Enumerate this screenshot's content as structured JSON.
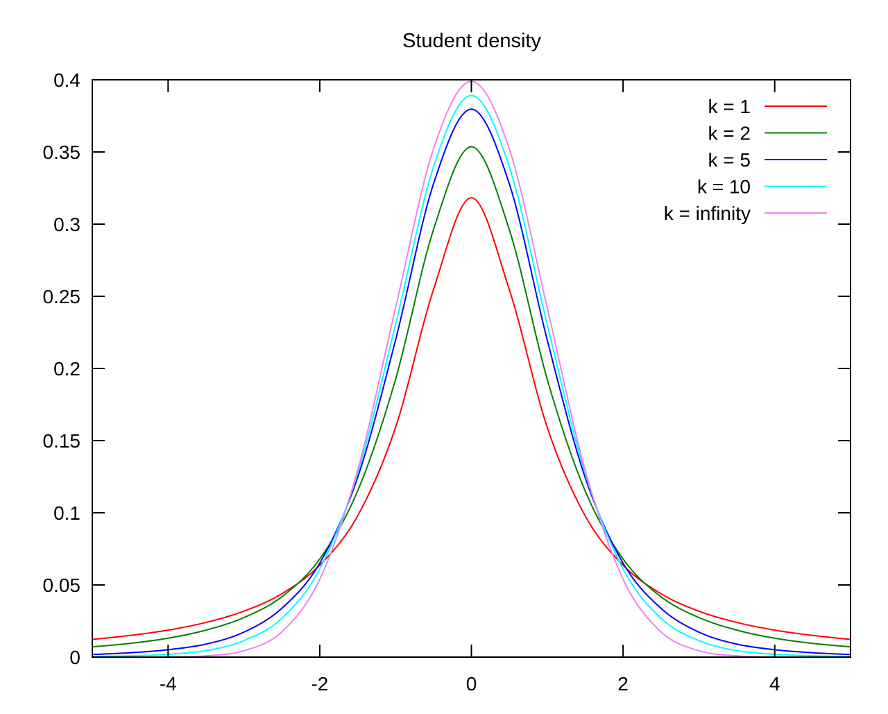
{
  "chart_data": {
    "type": "line",
    "title": "Student density",
    "xlabel": "",
    "ylabel": "",
    "xlim": [
      -5,
      5
    ],
    "ylim": [
      0,
      0.4
    ],
    "x_ticks": [
      -4,
      -2,
      0,
      2,
      4
    ],
    "x_tick_labels": [
      "-4",
      "-2",
      "0",
      "2",
      "4"
    ],
    "y_ticks": [
      0,
      0.05,
      0.1,
      0.15,
      0.2,
      0.25,
      0.3,
      0.35,
      0.4
    ],
    "y_tick_labels": [
      "0",
      "0.05",
      "0.1",
      "0.15",
      "0.2",
      "0.25",
      "0.3",
      "0.35",
      "0.4"
    ],
    "grid": false,
    "legend_position": "top-right",
    "x": [
      -5,
      -4.5,
      -4,
      -3.5,
      -3,
      -2.5,
      -2,
      -1.5,
      -1,
      -0.5,
      0,
      0.5,
      1,
      1.5,
      2,
      2.5,
      3,
      3.5,
      4,
      4.5,
      5
    ],
    "series": [
      {
        "name": "k = 1",
        "color": "#ff0000",
        "values": [
          0.0122,
          0.015,
          0.0187,
          0.024,
          0.0318,
          0.0439,
          0.0637,
          0.0979,
          0.1592,
          0.2546,
          0.3183,
          0.2546,
          0.1592,
          0.0979,
          0.0637,
          0.0439,
          0.0318,
          0.024,
          0.0187,
          0.015,
          0.0122
        ]
      },
      {
        "name": "k = 2",
        "color": "#008000",
        "values": [
          0.0071,
          0.0095,
          0.0131,
          0.0187,
          0.0274,
          0.0418,
          0.068,
          0.1152,
          0.1925,
          0.2962,
          0.3536,
          0.2962,
          0.1925,
          0.1152,
          0.068,
          0.0418,
          0.0274,
          0.0187,
          0.0131,
          0.0095,
          0.0071
        ]
      },
      {
        "name": "k = 5",
        "color": "#0000ff",
        "values": [
          0.0018,
          0.003,
          0.0051,
          0.009,
          0.0173,
          0.0338,
          0.0651,
          0.1245,
          0.2197,
          0.3279,
          0.3796,
          0.3279,
          0.2197,
          0.1245,
          0.0651,
          0.0338,
          0.0173,
          0.009,
          0.0051,
          0.003,
          0.0018
        ]
      },
      {
        "name": "k = 10",
        "color": "#00ffff",
        "values": [
          0.0004,
          0.0009,
          0.002,
          0.0045,
          0.0114,
          0.0269,
          0.0611,
          0.1274,
          0.2304,
          0.3397,
          0.3891,
          0.3397,
          0.2304,
          0.1274,
          0.0611,
          0.0269,
          0.0114,
          0.0045,
          0.002,
          0.0009,
          0.0004
        ]
      },
      {
        "name": "k = infinity",
        "color": "#ee82ee",
        "values": [
          0.0,
          0.0,
          0.0001,
          0.0009,
          0.0044,
          0.0175,
          0.054,
          0.1295,
          0.242,
          0.3521,
          0.3989,
          0.3521,
          0.242,
          0.1295,
          0.054,
          0.0175,
          0.0044,
          0.0009,
          0.0001,
          0.0,
          0.0
        ]
      }
    ]
  }
}
